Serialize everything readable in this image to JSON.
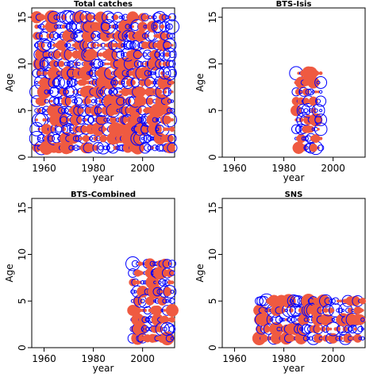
{
  "colors": {
    "negative_residual": "#ef5a41",
    "positive_residual": "#0000ff",
    "axis": "#000000"
  },
  "chart_data": [
    {
      "type": "scatter",
      "title": "Total catches",
      "xlabel": "year",
      "ylabel": "Age",
      "xlim": [
        1955,
        2013
      ],
      "ylim": [
        0,
        16
      ],
      "xticks": [
        1960,
        1980,
        2000
      ],
      "yticks": [
        0,
        5,
        10,
        15
      ],
      "x": [
        1957,
        2012
      ],
      "y": [
        1,
        15
      ]
    },
    {
      "type": "scatter",
      "title": "BTS-Isis",
      "xlabel": "year",
      "ylabel": "Age",
      "xlim": [
        1955,
        2013
      ],
      "ylim": [
        0,
        16
      ],
      "xticks": [
        1960,
        1980,
        2000
      ],
      "yticks": [
        0,
        5,
        10,
        15
      ],
      "x": [
        1985,
        1995
      ],
      "y": [
        1,
        9
      ]
    },
    {
      "type": "scatter",
      "title": "BTS-Combined",
      "xlabel": "year",
      "ylabel": "Age",
      "xlim": [
        1955,
        2013
      ],
      "ylim": [
        0,
        16
      ],
      "xticks": [
        1960,
        1980,
        2000
      ],
      "yticks": [
        0,
        5,
        10,
        15
      ],
      "x": [
        1996,
        2012
      ],
      "y": [
        1,
        9
      ]
    },
    {
      "type": "scatter",
      "title": "SNS",
      "xlabel": "year",
      "ylabel": "Age",
      "xlim": [
        1955,
        2013
      ],
      "ylim": [
        0,
        16
      ],
      "xticks": [
        1960,
        1980,
        2000
      ],
      "yticks": [
        0,
        5,
        10,
        15
      ],
      "x": [
        1970,
        2012
      ],
      "y": [
        1,
        5
      ]
    }
  ]
}
